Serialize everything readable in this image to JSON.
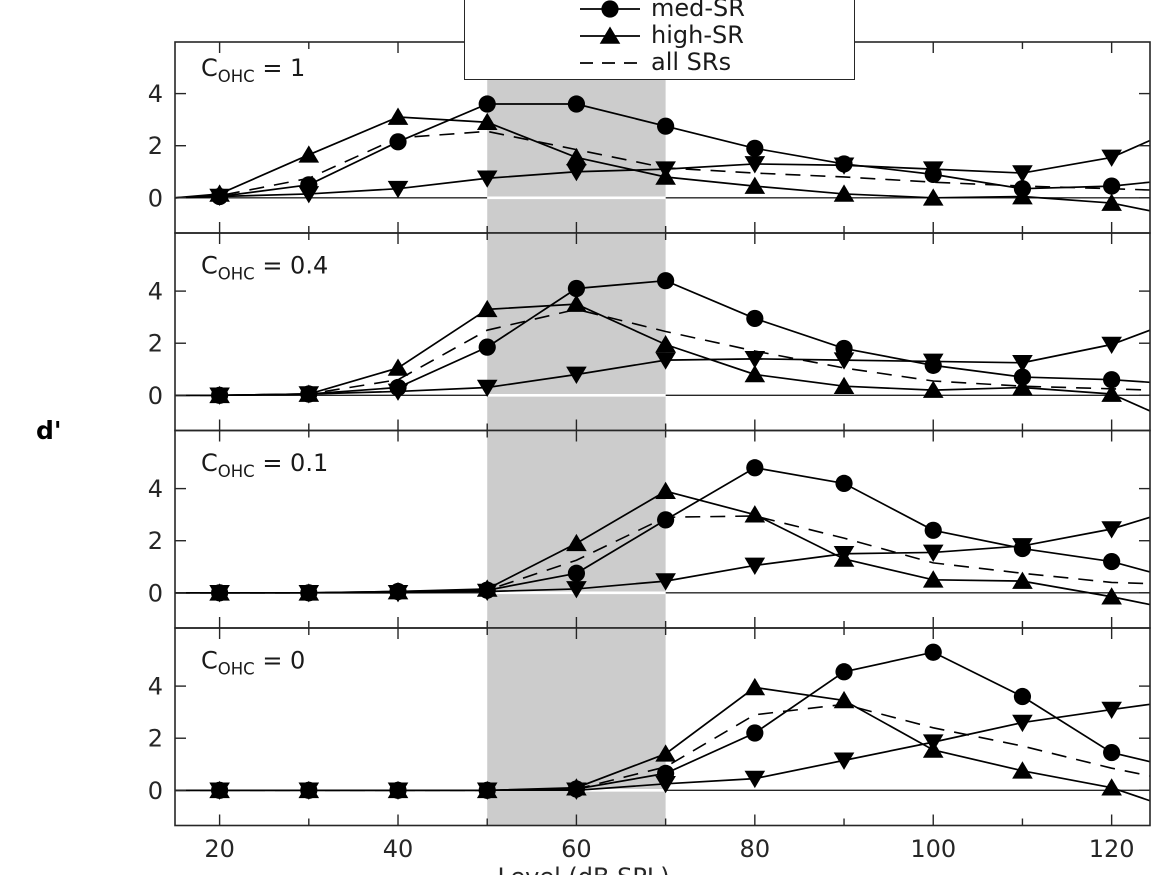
{
  "figure": {
    "ylabel": "d'",
    "xlabel": "Level (dB SPL)",
    "background": "#ffffff",
    "colors": {
      "axis": "#262626",
      "data": "#000000",
      "shaded_band": "#cccccc",
      "zero_line_inside_band": "#ffffff"
    }
  },
  "legend": {
    "entries": [
      {
        "label": "med-SR",
        "marker": "circle",
        "line": "solid"
      },
      {
        "label": "high-SR",
        "marker": "triangle-up",
        "line": "solid"
      },
      {
        "label": "all SRs",
        "marker": "none",
        "line": "dashed"
      }
    ],
    "note_top_row_cut_off": true
  },
  "chart_data": {
    "type": "line",
    "title": "",
    "ylabel": "d'",
    "xlabel": "Level (dB SPL)",
    "xlim": [
      15,
      124.3
    ],
    "ylim": [
      -1.35,
      6.2
    ],
    "x_ticks_major": [
      20,
      40,
      60,
      80,
      100,
      120
    ],
    "x_tick_labels": [
      "20",
      "40",
      "60",
      "80",
      "100",
      "120"
    ],
    "x_ticks_minor": [
      30,
      50,
      70,
      90,
      110
    ],
    "y_ticks": [
      0,
      2,
      4
    ],
    "y_tick_labels": [
      "0",
      "2",
      "4"
    ],
    "grid": false,
    "legend_position": "top-center, partially cut off at top edge",
    "shaded_region": {
      "x0": 50,
      "x1": 70,
      "color": "#cccccc"
    },
    "x": [
      15,
      20,
      30,
      40,
      50,
      60,
      70,
      80,
      90,
      100,
      110,
      120,
      125
    ],
    "marker_x": [
      20,
      30,
      40,
      50,
      60,
      70,
      80,
      90,
      100,
      110,
      120
    ],
    "series_styles": [
      {
        "key": "med_sr",
        "legend_label": "med-SR",
        "marker": "circle",
        "line": "solid"
      },
      {
        "key": "high_sr",
        "legend_label": "high-SR",
        "marker": "triangle-up",
        "line": "solid"
      },
      {
        "key": "tri_down",
        "legend_label": null,
        "marker": "triangle-down",
        "line": "solid"
      },
      {
        "key": "all_srs",
        "legend_label": "all SRs",
        "marker": "none",
        "line": "dashed"
      }
    ],
    "panels": [
      {
        "label_text": "C_OHC = 1",
        "label": {
          "base": "C",
          "sub": "OHC",
          "rest": " = 1"
        },
        "series": {
          "med_sr": [
            0,
            0.05,
            0.5,
            2.15,
            3.6,
            3.6,
            2.75,
            1.9,
            1.3,
            0.9,
            0.35,
            0.45,
            0.6
          ],
          "high_sr": [
            0,
            0.15,
            1.65,
            3.1,
            2.9,
            1.55,
            0.8,
            0.45,
            0.15,
            0.0,
            0.05,
            -0.2,
            -0.5
          ],
          "tri_down": [
            0,
            0.05,
            0.15,
            0.35,
            0.75,
            1.0,
            1.1,
            1.3,
            1.25,
            1.1,
            0.95,
            1.55,
            2.2
          ],
          "all_srs": [
            0,
            0.08,
            0.75,
            2.3,
            2.55,
            1.85,
            1.15,
            0.95,
            0.8,
            0.6,
            0.45,
            0.35,
            0.3
          ]
        }
      },
      {
        "label_text": "C_OHC = 0.4",
        "label": {
          "base": "C",
          "sub": "OHC",
          "rest": " = 0.4"
        },
        "series": {
          "med_sr": [
            0,
            0,
            0.05,
            0.3,
            1.85,
            4.1,
            4.4,
            2.95,
            1.8,
            1.15,
            0.7,
            0.6,
            0.5
          ],
          "high_sr": [
            0,
            0,
            0.05,
            1.05,
            3.3,
            3.5,
            1.95,
            0.8,
            0.35,
            0.2,
            0.3,
            0.05,
            -0.6
          ],
          "tri_down": [
            0,
            0,
            0.05,
            0.15,
            0.3,
            0.8,
            1.35,
            1.4,
            1.35,
            1.3,
            1.25,
            1.95,
            2.5
          ],
          "all_srs": [
            0,
            0,
            0.05,
            0.6,
            2.5,
            3.3,
            2.45,
            1.7,
            1.05,
            0.55,
            0.35,
            0.25,
            0.2
          ]
        }
      },
      {
        "label_text": "C_OHC = 0.1",
        "label": {
          "base": "C",
          "sub": "OHC",
          "rest": " = 0.1"
        },
        "series": {
          "med_sr": [
            0,
            0,
            0,
            0.05,
            0.1,
            0.75,
            2.8,
            4.8,
            4.2,
            2.4,
            1.7,
            1.2,
            0.8
          ],
          "high_sr": [
            0,
            0,
            0,
            0.05,
            0.15,
            1.9,
            3.9,
            3.0,
            1.3,
            0.5,
            0.45,
            -0.15,
            -0.45
          ],
          "tri_down": [
            0,
            0,
            0,
            0,
            0.05,
            0.15,
            0.45,
            1.05,
            1.5,
            1.55,
            1.8,
            2.45,
            2.9
          ],
          "all_srs": [
            0,
            0,
            0,
            0.03,
            0.1,
            1.25,
            2.9,
            2.95,
            2.1,
            1.15,
            0.75,
            0.4,
            0.35
          ]
        }
      },
      {
        "label_text": "C_OHC = 0",
        "label": {
          "base": "C",
          "sub": "OHC",
          "rest": " = 0"
        },
        "series": {
          "med_sr": [
            0,
            0,
            0,
            0,
            0,
            0.05,
            0.65,
            2.2,
            4.55,
            5.3,
            3.6,
            1.45,
            1.1
          ],
          "high_sr": [
            0,
            0,
            0,
            0,
            0,
            0.1,
            1.4,
            3.95,
            3.45,
            1.55,
            0.75,
            0.1,
            -0.4
          ],
          "tri_down": [
            0,
            0,
            0,
            0,
            0,
            0,
            0.25,
            0.45,
            1.15,
            1.85,
            2.6,
            3.1,
            3.3
          ],
          "all_srs": [
            0,
            0,
            0,
            0,
            0,
            0.05,
            0.9,
            2.9,
            3.3,
            2.4,
            1.7,
            0.85,
            0.55
          ]
        }
      }
    ]
  }
}
